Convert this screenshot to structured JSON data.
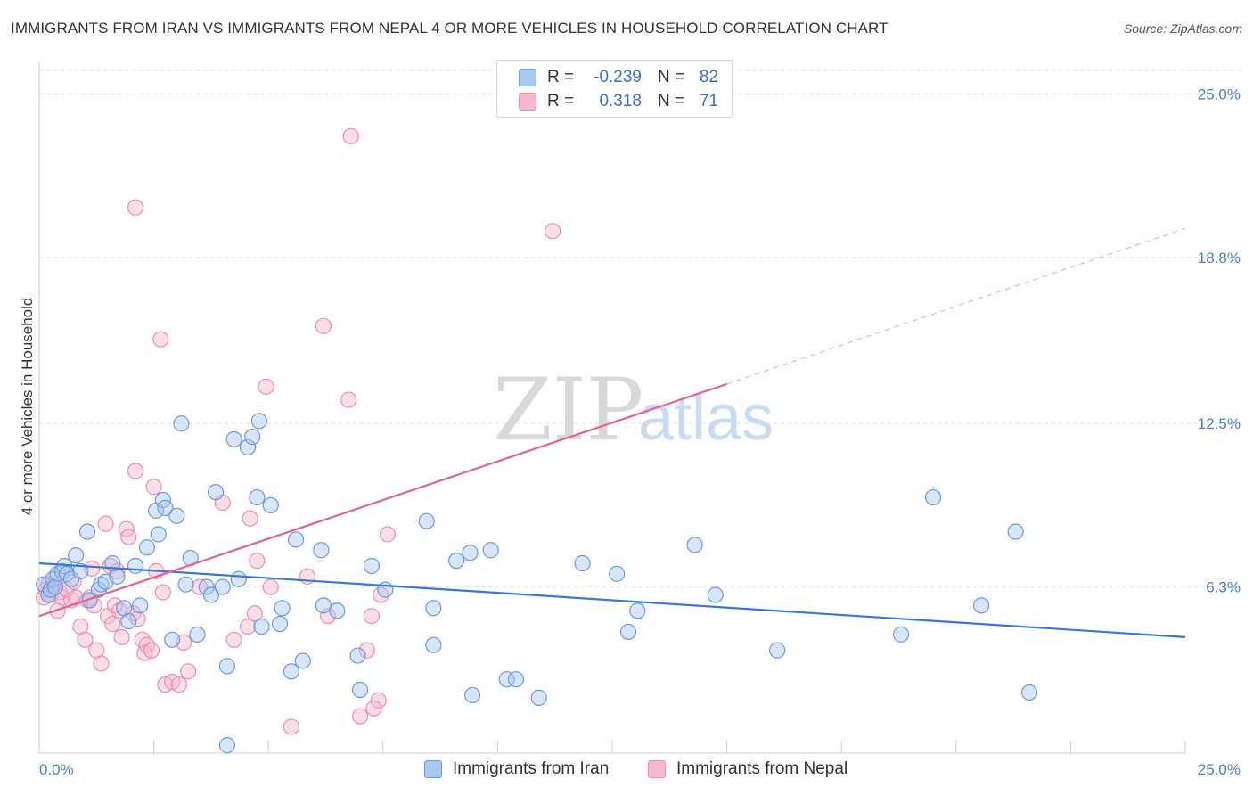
{
  "title": "IMMIGRANTS FROM IRAN VS IMMIGRANTS FROM NEPAL 4 OR MORE VEHICLES IN HOUSEHOLD CORRELATION CHART",
  "source": "Source: ZipAtlas.com",
  "watermark": {
    "zip": "ZIP",
    "atlas": "atlas"
  },
  "colors": {
    "iran_fill": "#a9c8f0",
    "iran_stroke": "#6a9be0",
    "iran_line": "#3b78d4",
    "nepal_fill": "#f6b9cc",
    "nepal_stroke": "#ec8fae",
    "nepal_line": "#e0648f",
    "axis_label": "#4a7fc8",
    "grid": "#dddddd"
  },
  "legend": {
    "rows": [
      {
        "r_label": "R =",
        "r_value": "-0.239",
        "n_label": "N =",
        "n_value": "82"
      },
      {
        "r_label": "R =",
        "r_value": "0.318",
        "n_label": "N =",
        "n_value": "71"
      }
    ]
  },
  "chart_data": {
    "type": "scatter",
    "xlabel": "",
    "ylabel": "4 or more Vehicles in Household",
    "xlim": [
      0,
      25
    ],
    "ylim": [
      0,
      26.2
    ],
    "x_tick_labels": [
      "0.0%",
      "25.0%"
    ],
    "y_ticks": [
      6.3,
      12.5,
      18.8,
      25.0
    ],
    "y_tick_labels": [
      "6.3%",
      "12.5%",
      "18.8%",
      "25.0%"
    ],
    "grid": "horizontal dashed",
    "legend_position": "top-center",
    "series": [
      {
        "name": "Immigrants from Iran",
        "trend": {
          "x0": 0,
          "y0": 7.2,
          "x1": 25,
          "y1": 4.4,
          "dashed_after": null
        },
        "points": [
          [
            0.1,
            6.4
          ],
          [
            0.2,
            6.0
          ],
          [
            0.25,
            6.2
          ],
          [
            0.3,
            6.6
          ],
          [
            0.35,
            6.3
          ],
          [
            0.4,
            6.8
          ],
          [
            0.5,
            6.9
          ],
          [
            0.55,
            7.1
          ],
          [
            0.6,
            6.8
          ],
          [
            0.7,
            6.6
          ],
          [
            0.8,
            7.5
          ],
          [
            0.9,
            6.9
          ],
          [
            1.05,
            8.4
          ],
          [
            1.1,
            5.8
          ],
          [
            1.3,
            6.2
          ],
          [
            1.35,
            6.4
          ],
          [
            1.45,
            6.5
          ],
          [
            1.6,
            7.2
          ],
          [
            1.7,
            6.7
          ],
          [
            1.85,
            5.5
          ],
          [
            1.95,
            5.0
          ],
          [
            2.1,
            7.1
          ],
          [
            2.2,
            5.6
          ],
          [
            2.35,
            7.8
          ],
          [
            2.55,
            9.2
          ],
          [
            2.6,
            8.3
          ],
          [
            2.7,
            9.6
          ],
          [
            2.75,
            9.3
          ],
          [
            2.9,
            4.3
          ],
          [
            3.0,
            9.0
          ],
          [
            3.1,
            12.5
          ],
          [
            3.2,
            6.4
          ],
          [
            3.3,
            7.4
          ],
          [
            3.45,
            4.5
          ],
          [
            3.65,
            6.3
          ],
          [
            3.75,
            6.0
          ],
          [
            3.85,
            9.9
          ],
          [
            4.0,
            6.3
          ],
          [
            4.1,
            3.3
          ],
          [
            4.25,
            11.9
          ],
          [
            4.35,
            6.6
          ],
          [
            4.55,
            11.6
          ],
          [
            4.65,
            12.0
          ],
          [
            4.75,
            9.7
          ],
          [
            4.8,
            12.6
          ],
          [
            4.85,
            4.8
          ],
          [
            5.05,
            9.4
          ],
          [
            5.25,
            4.9
          ],
          [
            5.3,
            5.5
          ],
          [
            5.5,
            3.1
          ],
          [
            5.6,
            8.1
          ],
          [
            5.75,
            3.5
          ],
          [
            6.15,
            7.7
          ],
          [
            6.2,
            5.6
          ],
          [
            6.5,
            5.4
          ],
          [
            6.95,
            3.7
          ],
          [
            7.0,
            2.4
          ],
          [
            7.25,
            7.1
          ],
          [
            7.55,
            6.2
          ],
          [
            8.45,
            8.8
          ],
          [
            8.6,
            4.1
          ],
          [
            8.6,
            5.5
          ],
          [
            9.1,
            7.3
          ],
          [
            9.4,
            7.6
          ],
          [
            9.45,
            2.2
          ],
          [
            9.85,
            7.7
          ],
          [
            10.2,
            2.8
          ],
          [
            10.4,
            2.8
          ],
          [
            10.9,
            2.1
          ],
          [
            11.85,
            7.2
          ],
          [
            12.6,
            6.8
          ],
          [
            12.85,
            4.6
          ],
          [
            13.05,
            5.4
          ],
          [
            14.3,
            7.9
          ],
          [
            14.75,
            6.0
          ],
          [
            16.1,
            3.9
          ],
          [
            18.8,
            4.5
          ],
          [
            19.5,
            9.7
          ],
          [
            20.55,
            5.6
          ],
          [
            21.3,
            8.4
          ],
          [
            21.6,
            2.3
          ],
          [
            4.1,
            0.3
          ]
        ]
      },
      {
        "name": "Immigrants from Nepal",
        "trend": {
          "x0": 0,
          "y0": 5.2,
          "x1": 15.0,
          "y1": 14.0,
          "dashed_x1": 25,
          "dashed_y1": 19.9
        },
        "points": [
          [
            0.1,
            5.9
          ],
          [
            0.15,
            6.2
          ],
          [
            0.2,
            6.4
          ],
          [
            0.25,
            6.0
          ],
          [
            0.3,
            6.3
          ],
          [
            0.35,
            6.6
          ],
          [
            0.4,
            5.4
          ],
          [
            0.45,
            6.1
          ],
          [
            0.5,
            5.9
          ],
          [
            0.6,
            6.2
          ],
          [
            0.7,
            5.8
          ],
          [
            0.75,
            6.5
          ],
          [
            0.8,
            5.9
          ],
          [
            0.9,
            4.8
          ],
          [
            1.0,
            4.3
          ],
          [
            1.05,
            5.8
          ],
          [
            1.1,
            5.9
          ],
          [
            1.15,
            7.0
          ],
          [
            1.2,
            5.6
          ],
          [
            1.25,
            3.9
          ],
          [
            1.35,
            3.4
          ],
          [
            1.45,
            8.7
          ],
          [
            1.5,
            5.2
          ],
          [
            1.55,
            7.1
          ],
          [
            1.6,
            4.9
          ],
          [
            1.65,
            5.6
          ],
          [
            1.7,
            6.9
          ],
          [
            1.75,
            5.4
          ],
          [
            1.8,
            4.4
          ],
          [
            1.9,
            8.5
          ],
          [
            1.95,
            8.2
          ],
          [
            2.05,
            5.3
          ],
          [
            2.1,
            20.7
          ],
          [
            2.1,
            10.7
          ],
          [
            2.15,
            5.1
          ],
          [
            2.25,
            4.3
          ],
          [
            2.3,
            3.8
          ],
          [
            2.35,
            4.1
          ],
          [
            2.45,
            3.9
          ],
          [
            2.5,
            10.1
          ],
          [
            2.55,
            6.9
          ],
          [
            2.65,
            15.7
          ],
          [
            2.7,
            6.1
          ],
          [
            2.75,
            2.6
          ],
          [
            2.9,
            2.7
          ],
          [
            3.05,
            2.6
          ],
          [
            3.15,
            4.2
          ],
          [
            3.25,
            3.1
          ],
          [
            3.5,
            6.3
          ],
          [
            4.0,
            9.5
          ],
          [
            4.25,
            4.3
          ],
          [
            4.55,
            4.8
          ],
          [
            4.6,
            8.9
          ],
          [
            4.7,
            5.3
          ],
          [
            4.75,
            7.3
          ],
          [
            4.95,
            13.9
          ],
          [
            5.05,
            6.3
          ],
          [
            5.5,
            1.0
          ],
          [
            5.85,
            6.7
          ],
          [
            6.2,
            16.2
          ],
          [
            6.3,
            5.2
          ],
          [
            6.75,
            13.4
          ],
          [
            6.8,
            23.4
          ],
          [
            7.0,
            1.4
          ],
          [
            7.15,
            3.9
          ],
          [
            7.25,
            5.2
          ],
          [
            7.4,
            2.0
          ],
          [
            7.45,
            6.0
          ],
          [
            7.6,
            8.3
          ],
          [
            11.2,
            19.8
          ],
          [
            7.3,
            1.7
          ]
        ]
      }
    ]
  },
  "bottom_legend": {
    "items": [
      {
        "label": "Immigrants from Iran"
      },
      {
        "label": "Immigrants from Nepal"
      }
    ]
  }
}
